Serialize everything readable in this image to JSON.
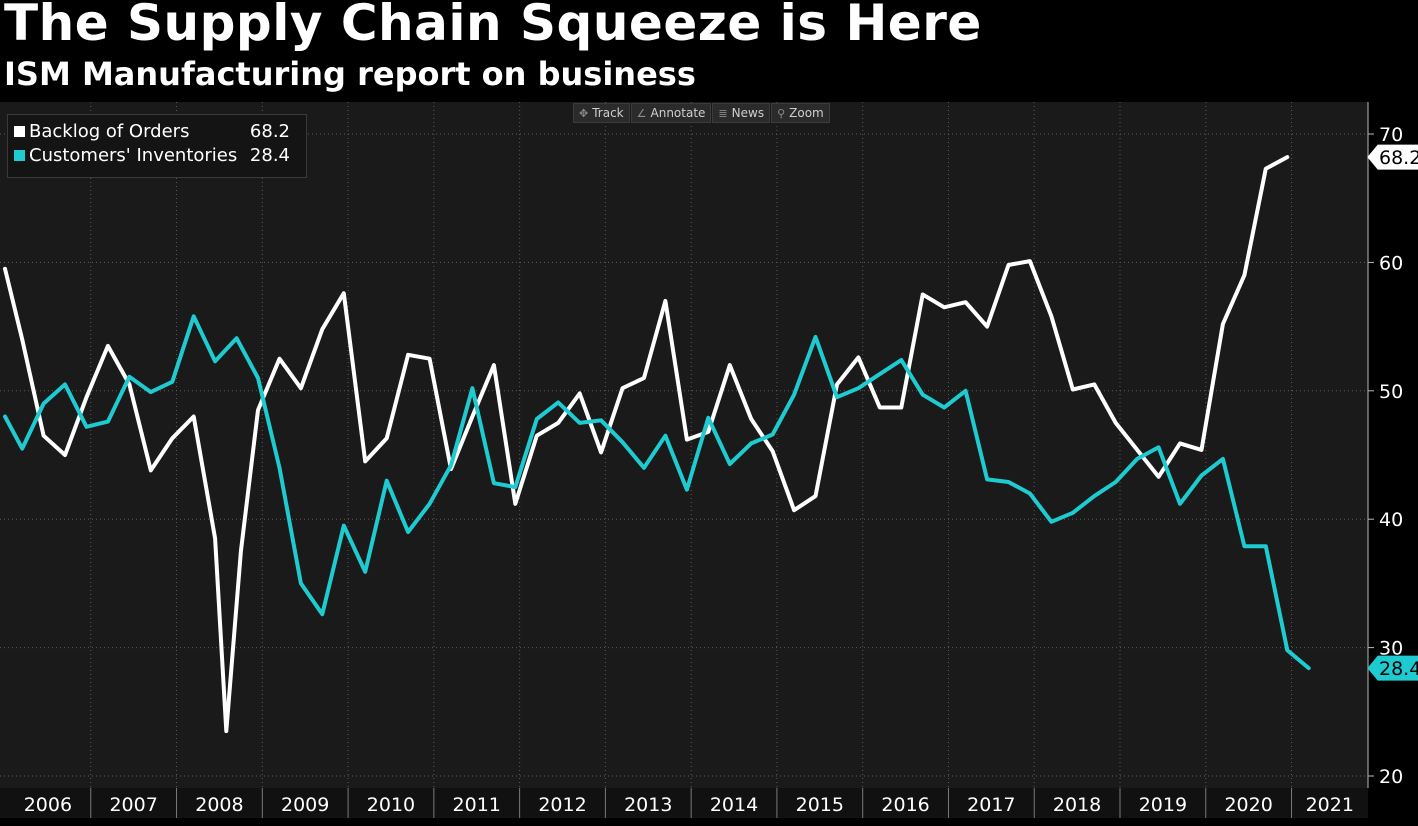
{
  "header": {
    "title": "The Supply Chain Squeeze is Here",
    "subtitle": "ISM Manufacturing report on business"
  },
  "toolbar": {
    "items": [
      {
        "label": "Track",
        "icon": "crosshair-icon"
      },
      {
        "label": "Annotate",
        "icon": "pencil-icon"
      },
      {
        "label": "News",
        "icon": "news-icon"
      },
      {
        "label": "Zoom",
        "icon": "magnifier-icon"
      }
    ]
  },
  "legend": {
    "entries": [
      {
        "name": "Backlog of Orders",
        "value": "68.2",
        "color": "#ffffff"
      },
      {
        "name": "Customers' Inventories",
        "value": "28.4",
        "color": "#1ecbd0"
      }
    ]
  },
  "chart_data": {
    "type": "line",
    "title": "The Supply Chain Squeeze is Here",
    "subtitle": "ISM Manufacturing report on business",
    "xlabel": "",
    "ylabel": "",
    "x_range": [
      2006.0,
      2021.6
    ],
    "ylim": [
      20,
      73
    ],
    "y_ticks": [
      20,
      30,
      40,
      50,
      60,
      70
    ],
    "x_tick_labels": [
      "2006",
      "2007",
      "2008",
      "2009",
      "2010",
      "2011",
      "2012",
      "2013",
      "2014",
      "2015",
      "2016",
      "2017",
      "2018",
      "2019",
      "2020",
      "2021"
    ],
    "grid": true,
    "legend_position": "top-left",
    "series": [
      {
        "name": "Backlog of Orders",
        "color": "#ffffff",
        "last_value_label": "68.2",
        "points": [
          [
            2006.0,
            59.5
          ],
          [
            2006.2,
            54.0
          ],
          [
            2006.45,
            46.5
          ],
          [
            2006.7,
            45.0
          ],
          [
            2006.95,
            49.5
          ],
          [
            2007.2,
            53.5
          ],
          [
            2007.45,
            50.5
          ],
          [
            2007.7,
            43.8
          ],
          [
            2007.95,
            46.3
          ],
          [
            2008.2,
            48.0
          ],
          [
            2008.45,
            38.5
          ],
          [
            2008.58,
            23.5
          ],
          [
            2008.75,
            37.5
          ],
          [
            2008.95,
            48.5
          ],
          [
            2009.2,
            52.5
          ],
          [
            2009.45,
            50.2
          ],
          [
            2009.7,
            54.8
          ],
          [
            2009.95,
            57.6
          ],
          [
            2010.2,
            44.5
          ],
          [
            2010.45,
            46.3
          ],
          [
            2010.7,
            52.8
          ],
          [
            2010.95,
            52.5
          ],
          [
            2011.2,
            43.9
          ],
          [
            2011.45,
            48.0
          ],
          [
            2011.7,
            52.0
          ],
          [
            2011.95,
            41.2
          ],
          [
            2012.2,
            46.5
          ],
          [
            2012.45,
            47.5
          ],
          [
            2012.7,
            49.8
          ],
          [
            2012.95,
            45.2
          ],
          [
            2013.2,
            50.2
          ],
          [
            2013.45,
            51.0
          ],
          [
            2013.7,
            57.0
          ],
          [
            2013.95,
            46.2
          ],
          [
            2014.2,
            46.8
          ],
          [
            2014.45,
            52.0
          ],
          [
            2014.7,
            47.8
          ],
          [
            2014.95,
            45.3
          ],
          [
            2015.2,
            40.7
          ],
          [
            2015.45,
            41.8
          ],
          [
            2015.7,
            50.5
          ],
          [
            2015.95,
            52.6
          ],
          [
            2016.2,
            48.7
          ],
          [
            2016.45,
            48.7
          ],
          [
            2016.7,
            57.5
          ],
          [
            2016.95,
            56.5
          ],
          [
            2017.2,
            56.9
          ],
          [
            2017.45,
            55.0
          ],
          [
            2017.7,
            59.8
          ],
          [
            2017.95,
            60.1
          ],
          [
            2018.2,
            55.8
          ],
          [
            2018.45,
            50.1
          ],
          [
            2018.7,
            50.5
          ],
          [
            2018.95,
            47.5
          ],
          [
            2019.2,
            45.4
          ],
          [
            2019.45,
            43.3
          ],
          [
            2019.7,
            45.9
          ],
          [
            2019.95,
            45.4
          ],
          [
            2020.2,
            55.2
          ],
          [
            2020.45,
            59.0
          ],
          [
            2020.7,
            67.3
          ],
          [
            2020.95,
            68.2
          ]
        ]
      },
      {
        "name": "Customers' Inventories",
        "color": "#1ecbd0",
        "last_value_label": "28.4",
        "points": [
          [
            2006.0,
            48.0
          ],
          [
            2006.2,
            45.5
          ],
          [
            2006.45,
            49.0
          ],
          [
            2006.7,
            50.5
          ],
          [
            2006.95,
            47.2
          ],
          [
            2007.2,
            47.6
          ],
          [
            2007.45,
            51.1
          ],
          [
            2007.7,
            49.9
          ],
          [
            2007.95,
            50.7
          ],
          [
            2008.2,
            55.8
          ],
          [
            2008.45,
            52.3
          ],
          [
            2008.7,
            54.1
          ],
          [
            2008.95,
            51.0
          ],
          [
            2009.2,
            44.0
          ],
          [
            2009.45,
            35.0
          ],
          [
            2009.7,
            32.6
          ],
          [
            2009.95,
            39.5
          ],
          [
            2010.2,
            35.9
          ],
          [
            2010.45,
            43.0
          ],
          [
            2010.7,
            39.0
          ],
          [
            2010.95,
            41.2
          ],
          [
            2011.2,
            44.2
          ],
          [
            2011.45,
            50.2
          ],
          [
            2011.7,
            42.8
          ],
          [
            2011.95,
            42.5
          ],
          [
            2012.2,
            47.8
          ],
          [
            2012.45,
            49.1
          ],
          [
            2012.7,
            47.5
          ],
          [
            2012.95,
            47.7
          ],
          [
            2013.2,
            46.0
          ],
          [
            2013.45,
            44.0
          ],
          [
            2013.7,
            46.5
          ],
          [
            2013.95,
            42.3
          ],
          [
            2014.2,
            47.9
          ],
          [
            2014.45,
            44.3
          ],
          [
            2014.7,
            45.9
          ],
          [
            2014.95,
            46.6
          ],
          [
            2015.2,
            49.7
          ],
          [
            2015.45,
            54.2
          ],
          [
            2015.7,
            49.5
          ],
          [
            2015.95,
            50.2
          ],
          [
            2016.2,
            51.3
          ],
          [
            2016.45,
            52.4
          ],
          [
            2016.7,
            49.7
          ],
          [
            2016.95,
            48.7
          ],
          [
            2017.2,
            50.0
          ],
          [
            2017.45,
            43.1
          ],
          [
            2017.7,
            42.9
          ],
          [
            2017.95,
            42.0
          ],
          [
            2018.2,
            39.8
          ],
          [
            2018.45,
            40.5
          ],
          [
            2018.7,
            41.8
          ],
          [
            2018.95,
            42.9
          ],
          [
            2019.2,
            44.7
          ],
          [
            2019.45,
            45.6
          ],
          [
            2019.7,
            41.2
          ],
          [
            2019.95,
            43.4
          ],
          [
            2020.2,
            44.7
          ],
          [
            2020.45,
            37.9
          ],
          [
            2020.7,
            37.9
          ],
          [
            2020.95,
            29.8
          ],
          [
            2021.2,
            28.4
          ]
        ]
      }
    ]
  }
}
